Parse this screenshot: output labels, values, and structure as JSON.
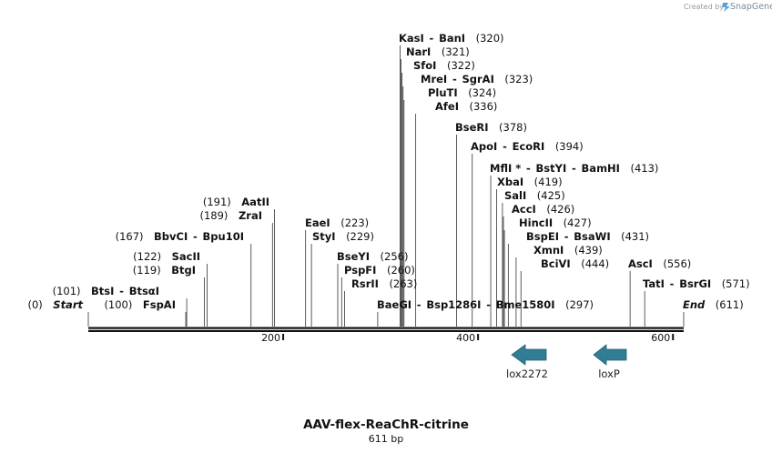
{
  "title": "AAV-flex-ReaChR-citrine",
  "length_label": "611 bp",
  "credit": {
    "label": "Created by",
    "brand": "SnapGene"
  },
  "sequence": {
    "start": 0,
    "end": 611
  },
  "axis_ticks": [
    {
      "label": "200",
      "pos": 200
    },
    {
      "label": "400",
      "pos": 400
    },
    {
      "label": "600",
      "pos": 600
    }
  ],
  "features": [
    {
      "name": "lox2272",
      "direction": "reverse"
    },
    {
      "name": "loxP",
      "direction": "reverse"
    }
  ],
  "terminals": [
    {
      "name": "Start",
      "pos": "(0)",
      "site": 0
    },
    {
      "name": "End",
      "pos": "(611)",
      "site": 611
    }
  ],
  "left_labels": [
    {
      "parts": [
        "AatII"
      ],
      "pos": "(191)",
      "site": 191
    },
    {
      "parts": [
        "ZraI"
      ],
      "pos": "(189)",
      "site": 189
    },
    {
      "parts": [
        "BbvCI",
        "Bpu10I"
      ],
      "pos": "(167)",
      "site": 167
    },
    {
      "parts": [
        "SacII"
      ],
      "pos": "(122)",
      "site": 122
    },
    {
      "parts": [
        "BtgI"
      ],
      "pos": "(119)",
      "site": 119
    },
    {
      "parts": [
        "BtsI",
        "BtsαI"
      ],
      "pos": "(101)",
      "site": 101
    },
    {
      "parts": [
        "FspAI"
      ],
      "pos": "(100)",
      "site": 100
    }
  ],
  "right_labels": [
    {
      "parts": [
        "KasI",
        "BanI"
      ],
      "pos": "(320)",
      "site": 320
    },
    {
      "parts": [
        "NarI"
      ],
      "pos": "(321)",
      "site": 321
    },
    {
      "parts": [
        "SfoI"
      ],
      "pos": "(322)",
      "site": 322
    },
    {
      "parts": [
        "MreI",
        "SgrAI"
      ],
      "pos": "(323)",
      "site": 323
    },
    {
      "parts": [
        "PluTI"
      ],
      "pos": "(324)",
      "site": 324
    },
    {
      "parts": [
        "AfeI"
      ],
      "pos": "(336)",
      "site": 336
    },
    {
      "parts": [
        "BseRI"
      ],
      "pos": "(378)",
      "site": 378
    },
    {
      "parts": [
        "ApoI",
        "EcoRI"
      ],
      "pos": "(394)",
      "site": 394
    },
    {
      "parts": [
        "MflI *",
        "BstYI",
        "BamHI"
      ],
      "pos": "(413)",
      "site": 413
    },
    {
      "parts": [
        "XbaI"
      ],
      "pos": "(419)",
      "site": 419
    },
    {
      "parts": [
        "SalI"
      ],
      "pos": "(425)",
      "site": 425
    },
    {
      "parts": [
        "AccI"
      ],
      "pos": "(426)",
      "site": 426
    },
    {
      "parts": [
        "HincII"
      ],
      "pos": "(427)",
      "site": 427
    },
    {
      "parts": [
        "BspEI",
        "BsaWI"
      ],
      "pos": "(431)",
      "site": 431
    },
    {
      "parts": [
        "XmnI"
      ],
      "pos": "(439)",
      "site": 439
    },
    {
      "parts": [
        "BciVI"
      ],
      "pos": "(444)",
      "site": 444
    },
    {
      "parts": [
        "EaeI"
      ],
      "pos": "(223)",
      "site": 223
    },
    {
      "parts": [
        "StyI"
      ],
      "pos": "(229)",
      "site": 229
    },
    {
      "parts": [
        "BseYI"
      ],
      "pos": "(256)",
      "site": 256
    },
    {
      "parts": [
        "PspFI"
      ],
      "pos": "(260)",
      "site": 260
    },
    {
      "parts": [
        "RsrII"
      ],
      "pos": "(263)",
      "site": 263
    },
    {
      "parts": [
        "BaeGI",
        "Bsp1286I",
        "Bme1580I"
      ],
      "pos": "(297)",
      "site": 297
    },
    {
      "parts": [
        "AscI"
      ],
      "pos": "(556)",
      "site": 556
    },
    {
      "parts": [
        "TatI",
        "BsrGI"
      ],
      "pos": "(571)",
      "site": 571
    }
  ]
}
